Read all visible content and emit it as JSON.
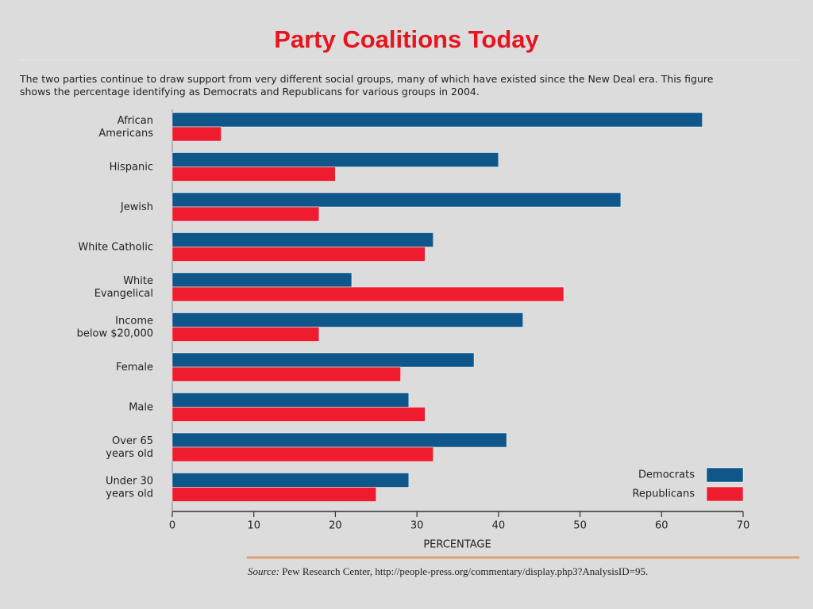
{
  "chart_data": {
    "type": "bar",
    "orientation": "horizontal",
    "title": "Party Coalitions Today",
    "subtitle": "The two parties continue to draw support from very different social groups, many of which have existed since the New Deal era. This figure\nshows the percentage identifying as Democrats and Republicans for various groups in 2004.",
    "categories": [
      "African\nAmericans",
      "Hispanic",
      "Jewish",
      "White Catholic",
      "White\nEvangelical",
      "Income\nbelow $20,000",
      "Female",
      "Male",
      "Over 65\nyears old",
      "Under 30\nyears old"
    ],
    "series": [
      {
        "name": "Democrats",
        "color": "#0f568a",
        "values": [
          65,
          40,
          55,
          32,
          22,
          43,
          37,
          29,
          41,
          29
        ]
      },
      {
        "name": "Republicans",
        "color": "#ee1c2e",
        "values": [
          6,
          20,
          18,
          31,
          48,
          18,
          28,
          31,
          32,
          25
        ]
      }
    ],
    "xlabel": "PERCENTAGE",
    "xlim": [
      0,
      70
    ],
    "xticks": [
      0,
      10,
      20,
      30,
      40,
      50,
      60,
      70
    ],
    "legend": "lower right",
    "source_label": "Source:",
    "source": "Pew Research Center, http://people-press.org/commentary/display.php3?AnalysisID=95."
  }
}
